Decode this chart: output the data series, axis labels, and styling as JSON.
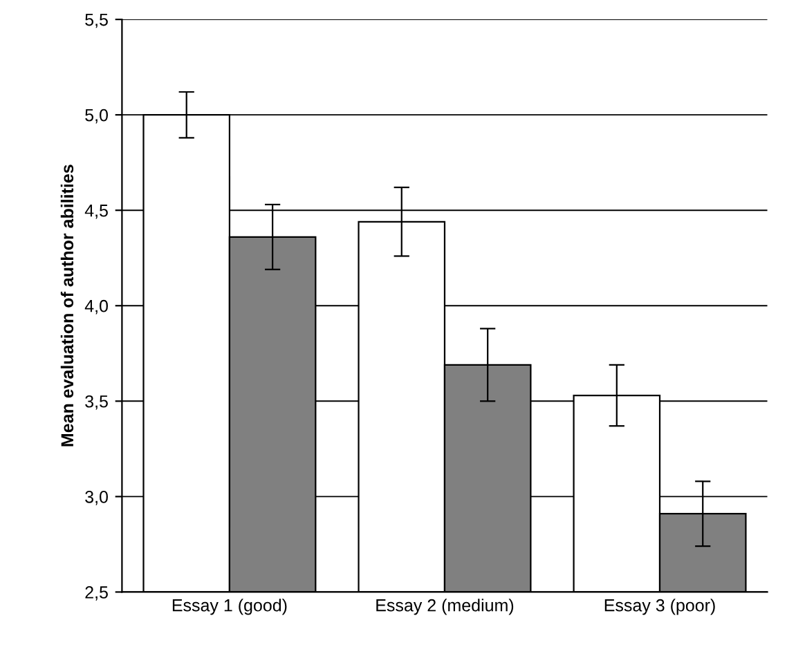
{
  "chart_data": {
    "type": "bar",
    "ylabel": "Mean evaluation of author abilities",
    "categories": [
      "Essay 1 (good)",
      "Essay 2 (medium)",
      "Essay 3 (poor)"
    ],
    "series": [
      {
        "color": "#ffffff",
        "values": [
          5.0,
          4.44,
          3.53
        ],
        "errors": [
          0.12,
          0.18,
          0.16
        ]
      },
      {
        "color": "#808080",
        "values": [
          4.36,
          3.69,
          2.91
        ],
        "errors": [
          0.17,
          0.19,
          0.17
        ]
      }
    ],
    "ylim": [
      2.5,
      5.5
    ],
    "yticks": [
      {
        "value": 2.5,
        "label": "2,5"
      },
      {
        "value": 3.0,
        "label": "3,0"
      },
      {
        "value": 3.5,
        "label": "3,5"
      },
      {
        "value": 4.0,
        "label": "4,0"
      },
      {
        "value": 4.5,
        "label": "4,5"
      },
      {
        "value": 5.0,
        "label": "5,0"
      },
      {
        "value": 5.5,
        "label": "5,5"
      }
    ],
    "grid": "y"
  }
}
